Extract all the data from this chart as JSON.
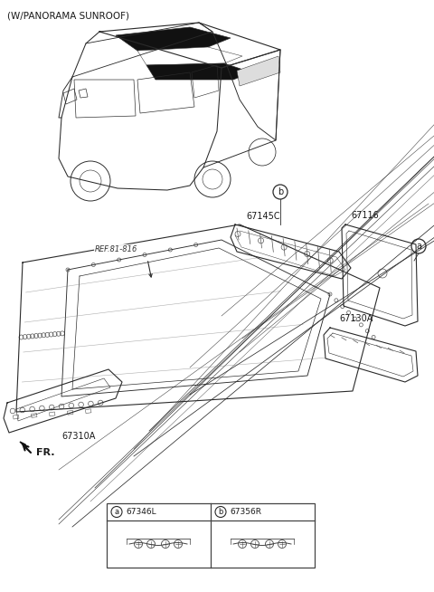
{
  "title": "(W/PANORAMA SUNROOF)",
  "bg_color": "#ffffff",
  "text_color": "#1a1a1a",
  "line_color": "#2a2a2a",
  "gray_color": "#888888",
  "title_fontsize": 7.5,
  "label_fontsize": 7.0,
  "small_fontsize": 6.5,
  "labels": {
    "ref": "REF.81-816",
    "p67145C": "67145C",
    "p67116": "67116",
    "p67130A": "67130A",
    "p67310A": "67310A",
    "fr": "FR.",
    "a_code": "67346L",
    "b_code": "67356R"
  }
}
